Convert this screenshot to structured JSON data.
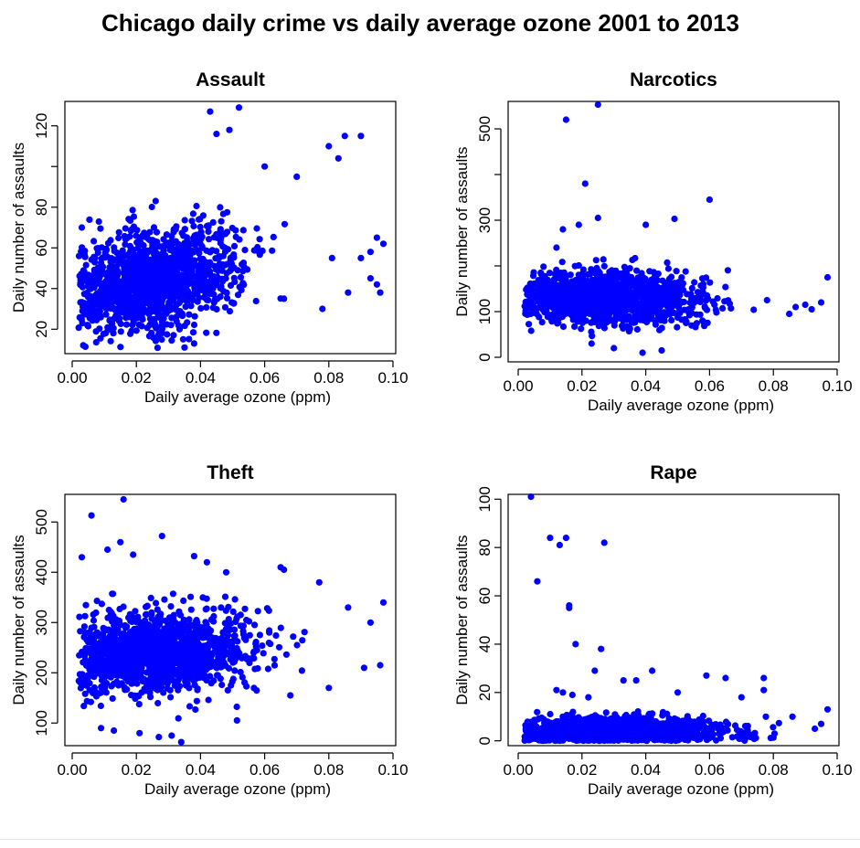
{
  "figure_title": "Chicago daily crime vs daily average ozone 2001 to 2013",
  "colors": {
    "points": "#0000ff",
    "axis": "#000000",
    "background": "#ffffff"
  },
  "chart_data": [
    {
      "type": "scatter",
      "title": "Assault",
      "xlabel": "Daily average ozone (ppm)",
      "ylabel": "Daily number of assaults",
      "xlim": [
        0.0,
        0.1
      ],
      "ylim": [
        8,
        132
      ],
      "xticks": [
        "0.00",
        "0.02",
        "0.04",
        "0.06",
        "0.08",
        "0.10"
      ],
      "yticks": [
        "20",
        "40",
        "60",
        "80",
        "100",
        "120"
      ],
      "yticks_labeled": [
        "20",
        "40",
        "60",
        "80",
        "120"
      ],
      "cloud": {
        "x_center": 0.026,
        "x_spread": 0.013,
        "y_center": 45,
        "y_spread": 12,
        "y_slope": 300,
        "n": 1300,
        "x_min": 0.002,
        "x_max": 0.075,
        "y_min": 10,
        "y_max": 100
      },
      "outliers": [
        [
          0.043,
          127
        ],
        [
          0.052,
          129
        ],
        [
          0.049,
          118
        ],
        [
          0.045,
          116
        ],
        [
          0.085,
          115
        ],
        [
          0.09,
          115
        ],
        [
          0.083,
          104
        ],
        [
          0.08,
          110
        ],
        [
          0.093,
          45
        ],
        [
          0.095,
          42
        ],
        [
          0.096,
          38
        ],
        [
          0.086,
          38
        ],
        [
          0.078,
          30
        ],
        [
          0.066,
          35
        ],
        [
          0.09,
          55
        ],
        [
          0.093,
          58
        ],
        [
          0.095,
          65
        ],
        [
          0.097,
          62
        ],
        [
          0.081,
          55
        ],
        [
          0.003,
          70
        ],
        [
          0.035,
          11
        ],
        [
          0.038,
          13
        ],
        [
          0.06,
          100
        ],
        [
          0.07,
          95
        ]
      ]
    },
    {
      "type": "scatter",
      "title": "Narcotics",
      "xlabel": "Daily average ozone (ppm)",
      "ylabel": "Daily number of assaults",
      "xlim": [
        0.0,
        0.1
      ],
      "ylim": [
        -10,
        560
      ],
      "xticks": [
        "0.00",
        "0.02",
        "0.04",
        "0.06",
        "0.08",
        "0.10"
      ],
      "yticks": [
        "0",
        "100",
        "200",
        "300",
        "400",
        "500"
      ],
      "yticks_labeled": [
        "0",
        "100",
        "300",
        "500"
      ],
      "cloud": {
        "x_center": 0.028,
        "x_spread": 0.014,
        "y_center": 130,
        "y_spread": 28,
        "y_slope": -150,
        "n": 1400,
        "x_min": 0.002,
        "x_max": 0.08,
        "y_min": 20,
        "y_max": 250
      },
      "outliers": [
        [
          0.025,
          553
        ],
        [
          0.015,
          520
        ],
        [
          0.021,
          380
        ],
        [
          0.06,
          345
        ],
        [
          0.025,
          305
        ],
        [
          0.049,
          303
        ],
        [
          0.019,
          290
        ],
        [
          0.04,
          290
        ],
        [
          0.012,
          240
        ],
        [
          0.014,
          280
        ],
        [
          0.097,
          175
        ],
        [
          0.092,
          105
        ],
        [
          0.09,
          115
        ],
        [
          0.095,
          120
        ],
        [
          0.087,
          110
        ],
        [
          0.085,
          95
        ],
        [
          0.03,
          20
        ],
        [
          0.039,
          10
        ],
        [
          0.045,
          15
        ],
        [
          0.023,
          30
        ]
      ]
    },
    {
      "type": "scatter",
      "title": "Theft",
      "xlabel": "Daily average ozone (ppm)",
      "ylabel": "Daily number of assaults",
      "xlim": [
        0.0,
        0.1
      ],
      "ylim": [
        55,
        555
      ],
      "xticks": [
        "0.00",
        "0.02",
        "0.04",
        "0.06",
        "0.08",
        "0.10"
      ],
      "yticks": [
        "100",
        "200",
        "300",
        "400",
        "500"
      ],
      "yticks_labeled": [
        "100",
        "200",
        "300",
        "400",
        "500"
      ],
      "cloud": {
        "x_center": 0.027,
        "x_spread": 0.014,
        "y_center": 240,
        "y_spread": 40,
        "y_slope": 200,
        "n": 1400,
        "x_min": 0.002,
        "x_max": 0.08,
        "y_min": 100,
        "y_max": 380
      },
      "outliers": [
        [
          0.016,
          545
        ],
        [
          0.006,
          513
        ],
        [
          0.003,
          430
        ],
        [
          0.011,
          445
        ],
        [
          0.015,
          460
        ],
        [
          0.019,
          435
        ],
        [
          0.028,
          472
        ],
        [
          0.038,
          432
        ],
        [
          0.042,
          420
        ],
        [
          0.048,
          400
        ],
        [
          0.066,
          405
        ],
        [
          0.065,
          410
        ],
        [
          0.077,
          380
        ],
        [
          0.086,
          330
        ],
        [
          0.093,
          300
        ],
        [
          0.097,
          340
        ],
        [
          0.096,
          215
        ],
        [
          0.091,
          210
        ],
        [
          0.08,
          170
        ],
        [
          0.068,
          155
        ],
        [
          0.034,
          62
        ],
        [
          0.027,
          72
        ],
        [
          0.021,
          80
        ],
        [
          0.013,
          85
        ],
        [
          0.009,
          90
        ],
        [
          0.031,
          75
        ]
      ]
    },
    {
      "type": "scatter",
      "title": "Rape",
      "xlabel": "Daily average ozone (ppm)",
      "ylabel": "Daily number of assaults",
      "xlim": [
        0.0,
        0.1
      ],
      "ylim": [
        -2,
        102
      ],
      "xticks": [
        "0.00",
        "0.02",
        "0.04",
        "0.06",
        "0.08",
        "0.10"
      ],
      "yticks": [
        "0",
        "20",
        "40",
        "60",
        "80",
        "100"
      ],
      "yticks_labeled": [
        "0",
        "20",
        "40",
        "60",
        "80",
        "100"
      ],
      "cloud": {
        "x_center": 0.03,
        "x_spread": 0.017,
        "y_center": 4,
        "y_spread": 3,
        "y_slope": 0,
        "n": 1300,
        "x_min": 0.002,
        "x_max": 0.082,
        "y_min": 0,
        "y_max": 14
      },
      "outliers": [
        [
          0.004,
          101
        ],
        [
          0.01,
          84
        ],
        [
          0.013,
          81
        ],
        [
          0.015,
          84
        ],
        [
          0.027,
          82
        ],
        [
          0.006,
          66
        ],
        [
          0.016,
          56
        ],
        [
          0.016,
          55
        ],
        [
          0.018,
          40
        ],
        [
          0.026,
          38
        ],
        [
          0.024,
          29
        ],
        [
          0.042,
          29
        ],
        [
          0.033,
          25
        ],
        [
          0.037,
          25
        ],
        [
          0.059,
          27
        ],
        [
          0.065,
          26
        ],
        [
          0.077,
          26
        ],
        [
          0.077,
          21
        ],
        [
          0.012,
          21
        ],
        [
          0.014,
          20
        ],
        [
          0.017,
          19
        ],
        [
          0.022,
          18
        ],
        [
          0.05,
          20
        ],
        [
          0.07,
          18
        ],
        [
          0.086,
          10
        ],
        [
          0.093,
          5
        ],
        [
          0.095,
          7
        ],
        [
          0.097,
          13
        ]
      ]
    }
  ]
}
